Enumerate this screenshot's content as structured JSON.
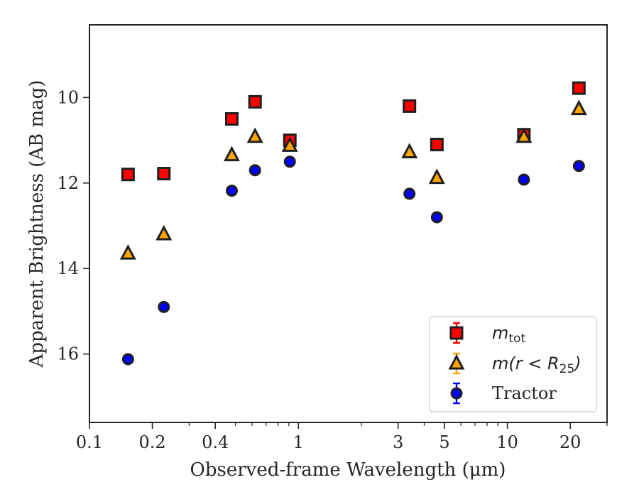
{
  "chart_data": {
    "type": "scatter",
    "xscale": "log",
    "yaxis_inverted": true,
    "xlim": [
      0.1,
      30
    ],
    "ylim": [
      8.3,
      17.6
    ],
    "xlabel": "Observed-frame Wavelength (μm)",
    "ylabel": "Apparent Brightness (AB mag)",
    "xticks": [
      {
        "value": 0.1,
        "label": "0.1"
      },
      {
        "value": 0.2,
        "label": "0.2"
      },
      {
        "value": 0.4,
        "label": "0.4"
      },
      {
        "value": 1,
        "label": "1"
      },
      {
        "value": 3,
        "label": "3"
      },
      {
        "value": 5,
        "label": "5"
      },
      {
        "value": 10,
        "label": "10"
      },
      {
        "value": 20,
        "label": "20"
      }
    ],
    "yticks": [
      {
        "value": 10,
        "label": "10"
      },
      {
        "value": 12,
        "label": "12"
      },
      {
        "value": 14,
        "label": "14"
      },
      {
        "value": 16,
        "label": "16"
      }
    ],
    "grid": false,
    "legend_position": "lower-right",
    "series": [
      {
        "name": "m_tot",
        "legend_label": {
          "main": "m",
          "sub": "tot"
        },
        "marker": "square",
        "color": "#ff0000",
        "points": [
          {
            "x": 0.153,
            "y": 11.8
          },
          {
            "x": 0.227,
            "y": 11.78
          },
          {
            "x": 0.48,
            "y": 10.5
          },
          {
            "x": 0.62,
            "y": 10.1
          },
          {
            "x": 0.91,
            "y": 11.0
          },
          {
            "x": 3.4,
            "y": 10.2
          },
          {
            "x": 4.6,
            "y": 11.1
          },
          {
            "x": 12.0,
            "y": 10.87
          },
          {
            "x": 22.0,
            "y": 9.78
          }
        ]
      },
      {
        "name": "m(r<R25)",
        "legend_label": {
          "main": "m(r < R",
          "sub": "25",
          "tail": ")"
        },
        "marker": "triangle",
        "color": "#ffa500",
        "points": [
          {
            "x": 0.153,
            "y": 13.65
          },
          {
            "x": 0.227,
            "y": 13.2
          },
          {
            "x": 0.48,
            "y": 11.35
          },
          {
            "x": 0.62,
            "y": 10.92
          },
          {
            "x": 0.91,
            "y": 11.13
          },
          {
            "x": 3.4,
            "y": 11.28
          },
          {
            "x": 4.6,
            "y": 11.88
          },
          {
            "x": 12.0,
            "y": 10.92
          },
          {
            "x": 22.0,
            "y": 10.27
          }
        ]
      },
      {
        "name": "Tractor",
        "legend_label": {
          "main": "Tractor"
        },
        "marker": "circle",
        "color": "#0000ff",
        "points": [
          {
            "x": 0.153,
            "y": 16.12
          },
          {
            "x": 0.227,
            "y": 14.9
          },
          {
            "x": 0.48,
            "y": 12.18
          },
          {
            "x": 0.62,
            "y": 11.7
          },
          {
            "x": 0.91,
            "y": 11.5
          },
          {
            "x": 3.4,
            "y": 12.25
          },
          {
            "x": 4.6,
            "y": 12.8
          },
          {
            "x": 12.0,
            "y": 11.92
          },
          {
            "x": 22.0,
            "y": 11.6
          }
        ]
      }
    ]
  }
}
